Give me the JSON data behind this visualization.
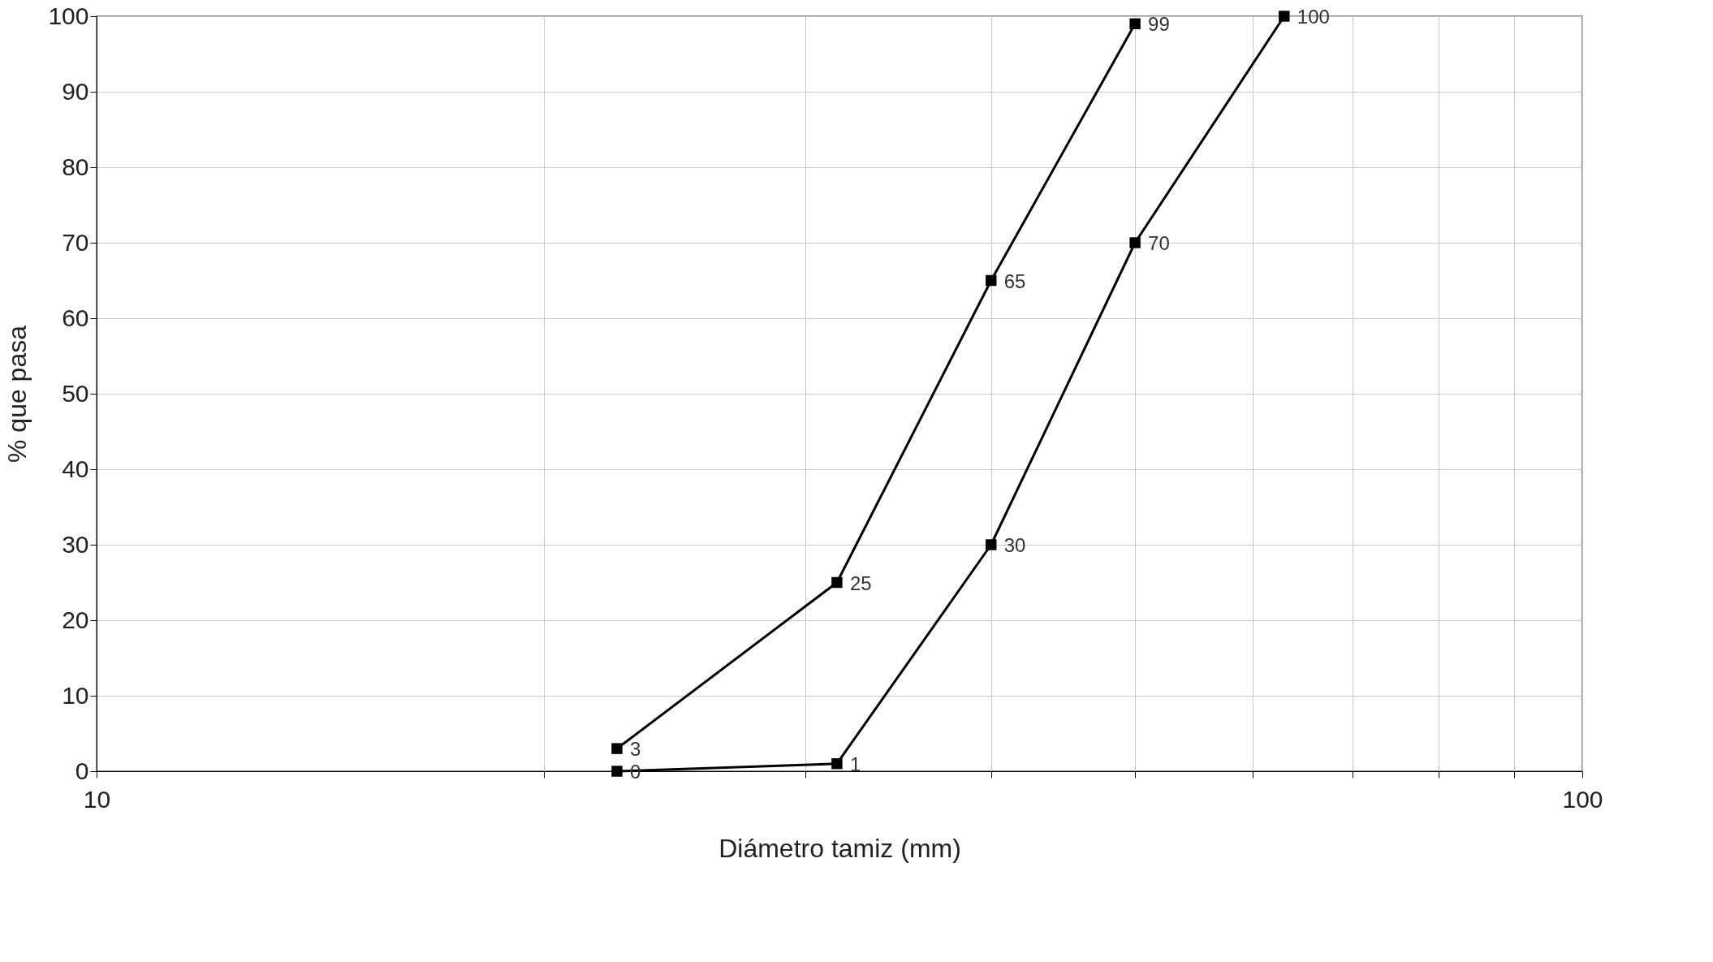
{
  "chart_data": {
    "type": "line",
    "xlabel": "Diámetro tamiz (mm)",
    "ylabel": "% que pasa",
    "log": "x",
    "xlim": [
      10,
      100
    ],
    "xticks": [
      10,
      {
        "value": 20,
        "label": null
      },
      {
        "value": 30,
        "label": null
      },
      {
        "value": 40,
        "label": null
      },
      {
        "value": 50,
        "label": null
      },
      {
        "value": 60,
        "label": null
      },
      {
        "value": 70,
        "label": null
      },
      {
        "value": 80,
        "label": null
      },
      {
        "value": 90,
        "label": null
      },
      100
    ],
    "ylim": [
      0,
      100
    ],
    "yticks": [
      0,
      10,
      20,
      30,
      40,
      50,
      60,
      70,
      80,
      90,
      100
    ],
    "grid": true,
    "legend": false,
    "marker": "square",
    "line_style": "solid",
    "data_labels": true,
    "series": [
      {
        "color": "#000000",
        "x": [
          22.4,
          31.5,
          40,
          50
        ],
        "values": [
          3,
          25,
          65,
          99
        ]
      },
      {
        "color": "#000000",
        "x": [
          22.4,
          31.5,
          40,
          50,
          63
        ],
        "values": [
          0,
          1,
          30,
          70,
          100
        ]
      }
    ]
  }
}
